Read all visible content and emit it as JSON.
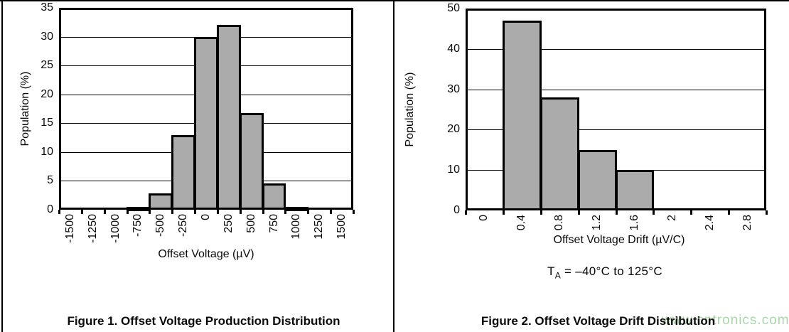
{
  "page": {
    "background": "#ffffff",
    "rule_color": "#000000"
  },
  "watermark": {
    "text": "www.cntronics.com",
    "color": "#a9d7a9"
  },
  "chart_data": [
    {
      "type": "bar",
      "title": "Figure 1. Offset Voltage Production Distribution",
      "xlabel": "Offset Voltage (µV)",
      "ylabel": "Population (%)",
      "categories": [
        "-1500",
        "-1250",
        "-1000",
        "-750",
        "-500",
        "-250",
        "0",
        "250",
        "500",
        "750",
        "1000",
        "1250",
        "1500"
      ],
      "values": [
        0,
        0,
        0,
        0.5,
        2.8,
        13,
        30,
        32,
        16.8,
        4.5,
        0.5,
        0,
        0
      ],
      "ylim": [
        0,
        35
      ],
      "ytick_step": 5,
      "yticks": [
        "0",
        "5",
        "10",
        "15",
        "20",
        "25",
        "30",
        "35"
      ],
      "grid": true,
      "legend": "none",
      "bar_fill": "#ababab",
      "bar_border": "#000000"
    },
    {
      "type": "bar",
      "title": "Figure 2. Offset Voltage Drift Distribution",
      "xlabel": "Offset Voltage Drift (µV/C)",
      "ylabel": "Population (%)",
      "categories": [
        "0",
        "0.4",
        "0.8",
        "1.2",
        "1.6",
        "2",
        "2.4",
        "2.8"
      ],
      "values": [
        0,
        47,
        28,
        15,
        10,
        0,
        0,
        0
      ],
      "ylim": [
        0,
        50
      ],
      "ytick_step": 10,
      "yticks": [
        "0",
        "10",
        "20",
        "30",
        "40",
        "50"
      ],
      "grid": true,
      "legend": "none",
      "bar_fill": "#ababab",
      "bar_border": "#000000",
      "note_prefix": "T",
      "note_sub": "A",
      "note_rest": " = –40°C to 125°C"
    }
  ]
}
